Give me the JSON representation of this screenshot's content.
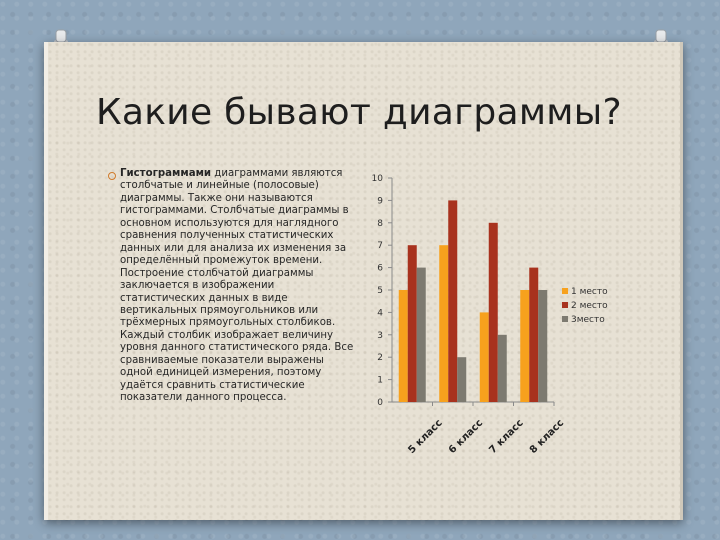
{
  "slide": {
    "title": "Какие бывают диаграммы?",
    "bullet_bold": "Гистограммами",
    "bullet_text": " диаграммами являются столбчатые и линейные (полосовые) диаграммы. Также они называются гистограммами. Столбчатые диаграммы в основном используются для наглядного сравнения полученных статистических данных или для анализа их изменения за определённый промежуток времени. Построение столбчатой диаграммы заключается в изображении статистических данных в виде вертикальных прямоугольников или трёхмерных прямоугольных столбиков. Каждый столбик изображает величину уровня данного статистического ряда. Все сравниваемые показатели выражены одной единицей измерения, поэтому удаётся сравнить статистические показатели данного процесса.",
    "accent_color": "#d07b2c",
    "pin_icon": "pushpin-icon"
  },
  "chart_data": {
    "type": "bar",
    "categories": [
      "5 класс",
      "6 класс",
      "7 класс",
      "8 класс"
    ],
    "series": [
      {
        "name": "1 место",
        "values": [
          5,
          7,
          4,
          5
        ],
        "color": "#f7a11d"
      },
      {
        "name": "2 место",
        "values": [
          7,
          9,
          8,
          6
        ],
        "color": "#a8321e"
      },
      {
        "name": "3место",
        "values": [
          6,
          2,
          3,
          5
        ],
        "color": "#7d7a70"
      }
    ],
    "ylim": [
      0,
      10
    ],
    "yticks": [
      0,
      1,
      2,
      3,
      4,
      5,
      6,
      7,
      8,
      9,
      10
    ],
    "grid": false,
    "legend_position": "right",
    "title": "",
    "xlabel": "",
    "ylabel": ""
  }
}
